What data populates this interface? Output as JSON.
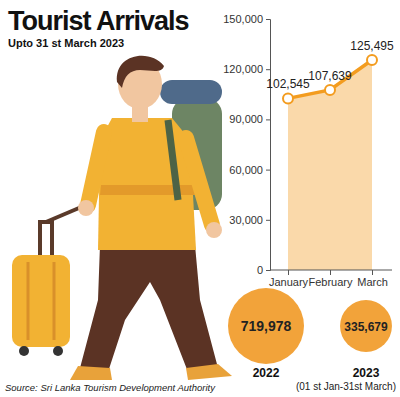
{
  "chart_data": [
    {
      "type": "line",
      "title": "Tourist Arrivals",
      "subtitle": "Upto 31 st March 2023",
      "source": "Source: Sri Lanka Tourism Development Authority",
      "categories": [
        "January",
        "February",
        "March"
      ],
      "values": [
        102545,
        107639,
        125495
      ],
      "value_labels": [
        "102,545",
        "107,639",
        "125,495"
      ],
      "data_labels": true,
      "color": "#f39c1f",
      "marker": "circle",
      "grid": false,
      "ylim": [
        0,
        150000
      ],
      "yticks": [
        0,
        {
          "value": 30000,
          "label": "30,000"
        },
        {
          "value": 60000,
          "label": "60,000"
        },
        {
          "value": 90000,
          "label": "90,000"
        },
        {
          "value": 120000,
          "label": "120,000"
        },
        {
          "value": 150000,
          "label": "150,000"
        }
      ]
    },
    {
      "type": "bubble",
      "categories": [
        "2022",
        "2023"
      ],
      "values": [
        719978,
        335679
      ],
      "value_labels": [
        "719,978",
        "335,679"
      ],
      "data_labels": true,
      "annotations": [
        "(01 st Jan-31st March)"
      ],
      "color": "#f2a33a"
    }
  ]
}
